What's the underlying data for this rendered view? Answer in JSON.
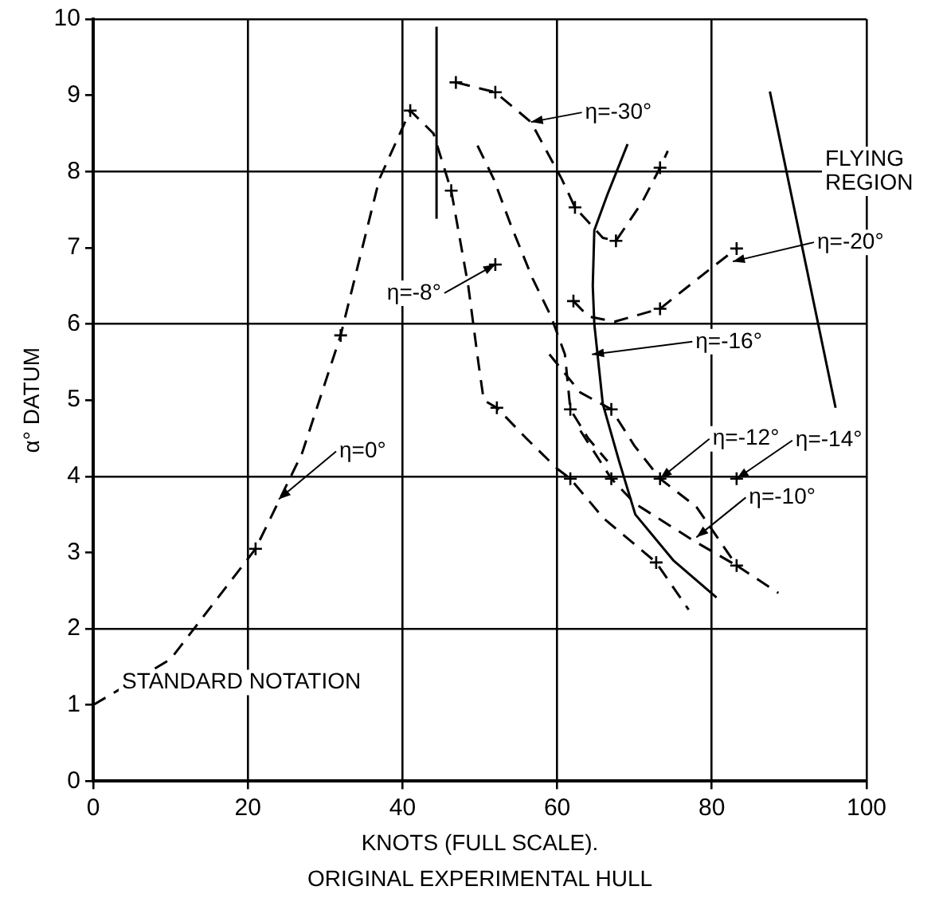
{
  "chart_data": {
    "type": "line",
    "xlabel": "KNOTS (FULL SCALE).",
    "ylabel": "α° DATUM",
    "xlim": [
      0,
      100
    ],
    "xticks": [
      0,
      20,
      40,
      60,
      80,
      100
    ],
    "ylim": [
      0,
      10
    ],
    "yticks": [
      0,
      1,
      2,
      3,
      4,
      5,
      6,
      7,
      8,
      9,
      10
    ],
    "grid": true,
    "marker": "none",
    "series": [
      {
        "color": "#000000",
        "line_style": "dashed",
        "x": [
          0,
          10,
          21,
          27,
          32,
          37,
          41,
          44,
          46.3,
          48.5,
          49.8,
          50.5,
          52.2,
          56,
          60,
          61.7,
          66,
          72.8,
          77
        ],
        "values": [
          1,
          1.6,
          3.05,
          4.3,
          5.85,
          7.9,
          8.8,
          8.5,
          7.75,
          6.5,
          5.5,
          5.0,
          4.9,
          4.5,
          4.1,
          3.97,
          3.45,
          2.87,
          2.25
        ]
      },
      {
        "color": "#000000",
        "line_style": "dashed",
        "x": [
          46.9,
          52,
          56.6,
          60.6,
          62.3,
          65.9,
          67.6,
          71,
          73.3,
          74.3
        ],
        "values": [
          9.17,
          9.04,
          8.65,
          7.9,
          7.53,
          7.13,
          7.09,
          7.6,
          8.05,
          8.27
        ]
      },
      {
        "color": "#000000",
        "line_style": "dashed",
        "x": [
          62.1,
          64,
          67.4,
          73.3,
          80,
          83.2
        ],
        "values": [
          6.3,
          6.1,
          6.03,
          6.2,
          6.74,
          6.99
        ]
      },
      {
        "color": "#000000",
        "line_style": "solid",
        "x": [
          69.1,
          66.5,
          64.8,
          64.6,
          64.8,
          65.9,
          68,
          70.1,
          75,
          80.6
        ],
        "values": [
          8.36,
          7.7,
          7.23,
          6.5,
          6.0,
          4.95,
          4.2,
          3.5,
          2.9,
          2.41
        ]
      },
      {
        "color": "#000000",
        "line_style": "dashed",
        "x": [
          49.7,
          51.8,
          54,
          56.8,
          59.2,
          61,
          61.7,
          64,
          66.5
        ],
        "values": [
          8.34,
          7.9,
          7.3,
          6.6,
          6.1,
          5.6,
          4.88,
          4.5,
          4.2
        ]
      },
      {
        "color": "#000000",
        "line_style": "dashed",
        "x": [
          59,
          63,
          67,
          70,
          73.3,
          78,
          83.2,
          88.6
        ],
        "values": [
          5.6,
          5.1,
          4.88,
          4.4,
          3.97,
          3.6,
          2.83,
          2.47
        ]
      },
      {
        "color": "#000000",
        "line_style": "dashed",
        "x": [
          63,
          67,
          70.1,
          77.9,
          83.2
        ],
        "values": [
          4.6,
          3.97,
          3.64,
          3.14,
          2.83
        ]
      },
      {
        "color": "#000000",
        "line_style": "solid",
        "x": [
          44.4,
          44.4
        ],
        "values": [
          7.38,
          9.9
        ]
      },
      {
        "color": "#000000",
        "line_style": "solid",
        "x": [
          87.5,
          96
        ],
        "values": [
          9.05,
          4.9
        ]
      },
      {
        "type": "scatter",
        "color": "#000000",
        "marker": "cross",
        "x": [
          21,
          32,
          41,
          46.3,
          46.9,
          52,
          52,
          52.2,
          62.3,
          67.6,
          73.3,
          62.1,
          73.3,
          83.2,
          61.7,
          67,
          61.7,
          67,
          72.8,
          83.2,
          73.3,
          83.2
        ],
        "values": [
          3.05,
          5.85,
          8.8,
          7.75,
          9.17,
          9.04,
          6.78,
          4.9,
          7.53,
          7.09,
          8.05,
          6.3,
          6.2,
          6.99,
          4.88,
          4.88,
          3.97,
          3.97,
          2.87,
          2.83,
          3.97,
          3.97
        ]
      }
    ],
    "annotations": [
      {
        "text": "η=-30°",
        "x": 56.6,
        "y": 8.65
      },
      {
        "text": "η=-20°",
        "x": 82.7,
        "y": 6.82
      },
      {
        "text": "η=-8°",
        "x": 52,
        "y": 6.78
      },
      {
        "text": "η=-16°",
        "x": 64.5,
        "y": 5.6
      },
      {
        "text": "η=0°",
        "x": 24,
        "y": 3.7
      },
      {
        "text": "η=-12°",
        "x": 73.3,
        "y": 3.97
      },
      {
        "text": "η=-14°",
        "x": 83.2,
        "y": 3.97
      },
      {
        "text": "η=-10°",
        "x": 78,
        "y": 3.2
      },
      "FLYING REGION",
      "STANDARD NOTATION",
      "ORIGINAL EXPERIMENTAL HULL"
    ]
  }
}
